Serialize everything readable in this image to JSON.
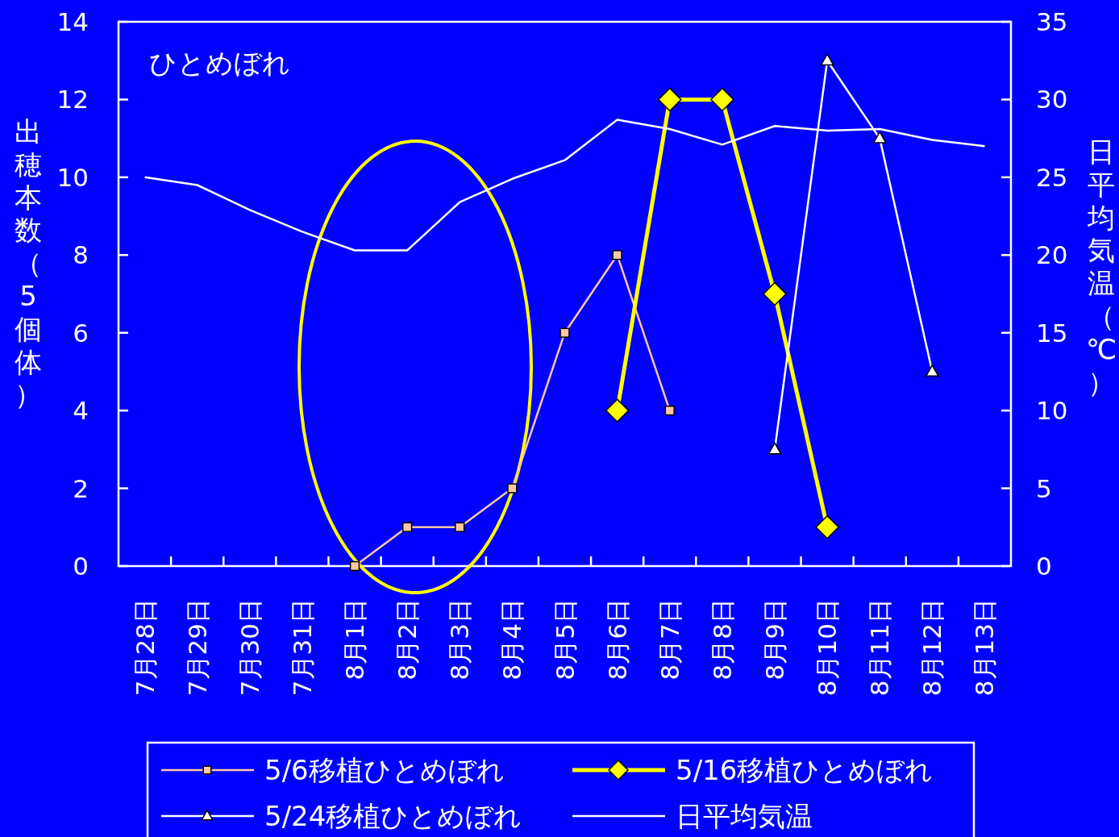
{
  "chart_data": {
    "type": "line",
    "title": "ひとめぼれ",
    "ylabel": "出穂本数（5個体）",
    "y2label": "日平均気温（℃）",
    "categories": [
      "7月28日",
      "7月29日",
      "7月30日",
      "7月31日",
      "8月1日",
      "8月2日",
      "8月3日",
      "8月4日",
      "8月5日",
      "8月6日",
      "8月7日",
      "8月8日",
      "8月9日",
      "8月10日",
      "8月11日",
      "8月12日",
      "8月13日"
    ],
    "series": [
      {
        "name": "5/6移植ひとめぼれ",
        "color": "#ffc8a0",
        "marker": "square",
        "values": [
          null,
          null,
          null,
          null,
          0,
          1,
          1,
          2,
          6,
          8,
          4,
          null,
          null,
          null,
          null,
          null,
          null
        ]
      },
      {
        "name": "5/16移植ひとめぼれ",
        "color": "#ffff00",
        "marker": "diamond",
        "values": [
          null,
          null,
          null,
          null,
          null,
          null,
          null,
          null,
          null,
          4,
          12,
          12,
          7,
          1,
          null,
          null,
          null
        ]
      },
      {
        "name": "5/24移植ひとめぼれ",
        "color": "#ffffff",
        "marker": "triangle",
        "values": [
          null,
          null,
          null,
          null,
          null,
          null,
          null,
          null,
          null,
          null,
          null,
          null,
          3,
          13,
          11,
          5,
          null
        ]
      },
      {
        "name": "日平均気温",
        "color": "#ffffff",
        "marker": "none",
        "axis": "y2",
        "values": [
          25.0,
          24.5,
          22.9,
          21.5,
          20.3,
          20.3,
          23.4,
          24.9,
          26.1,
          28.7,
          28.1,
          27.1,
          28.3,
          28.0,
          28.1,
          27.4,
          27.0
        ]
      }
    ],
    "ylim": [
      0,
      14
    ],
    "yticks": [
      0,
      2,
      4,
      6,
      8,
      10,
      12,
      14
    ],
    "y2lim": [
      0,
      35
    ],
    "y2ticks": [
      0,
      5,
      10,
      15,
      20,
      25,
      30,
      35
    ],
    "legend": "bottom"
  }
}
